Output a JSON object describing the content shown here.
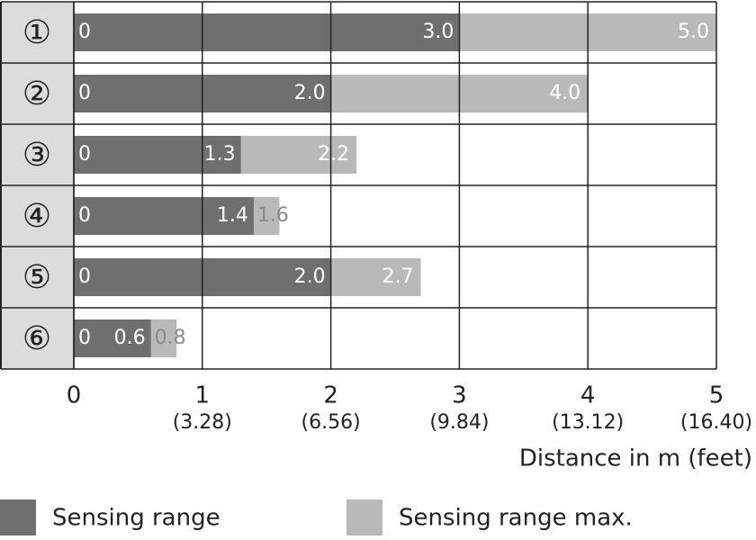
{
  "chart_data": {
    "type": "bar",
    "orientation": "horizontal",
    "categories": [
      "①",
      "②",
      "③",
      "④",
      "⑤",
      "⑥"
    ],
    "series": [
      {
        "name": "Sensing range max.",
        "color": "#b9b9b9",
        "values": [
          5.0,
          4.0,
          2.2,
          1.6,
          2.7,
          0.8
        ],
        "value_labels": [
          "5.0",
          "4.0",
          "2.2",
          "1.6",
          "2.7",
          "0.8"
        ]
      },
      {
        "name": "Sensing range",
        "color": "#6f6f6f",
        "values": [
          3.0,
          2.0,
          1.3,
          1.4,
          2.0,
          0.6
        ],
        "value_labels": [
          "3.0",
          "2.0",
          "1.3",
          "1.4",
          "2.0",
          "0.6"
        ]
      }
    ],
    "xlim": [
      0,
      5
    ],
    "xticks": [
      0,
      {
        "value": 1,
        "label": "1",
        "feet": "(3.28)"
      },
      {
        "value": 2,
        "label": "2",
        "feet": "(6.56)"
      },
      {
        "value": 3,
        "label": "3",
        "feet": "(9.84)"
      },
      {
        "value": 4,
        "label": "4",
        "feet": "(13.12)"
      },
      {
        "value": 5,
        "label": "5",
        "feet": "(16.40)"
      }
    ],
    "xlabel": "Distance in m (feet)",
    "grid": true,
    "legend": "bottom"
  }
}
